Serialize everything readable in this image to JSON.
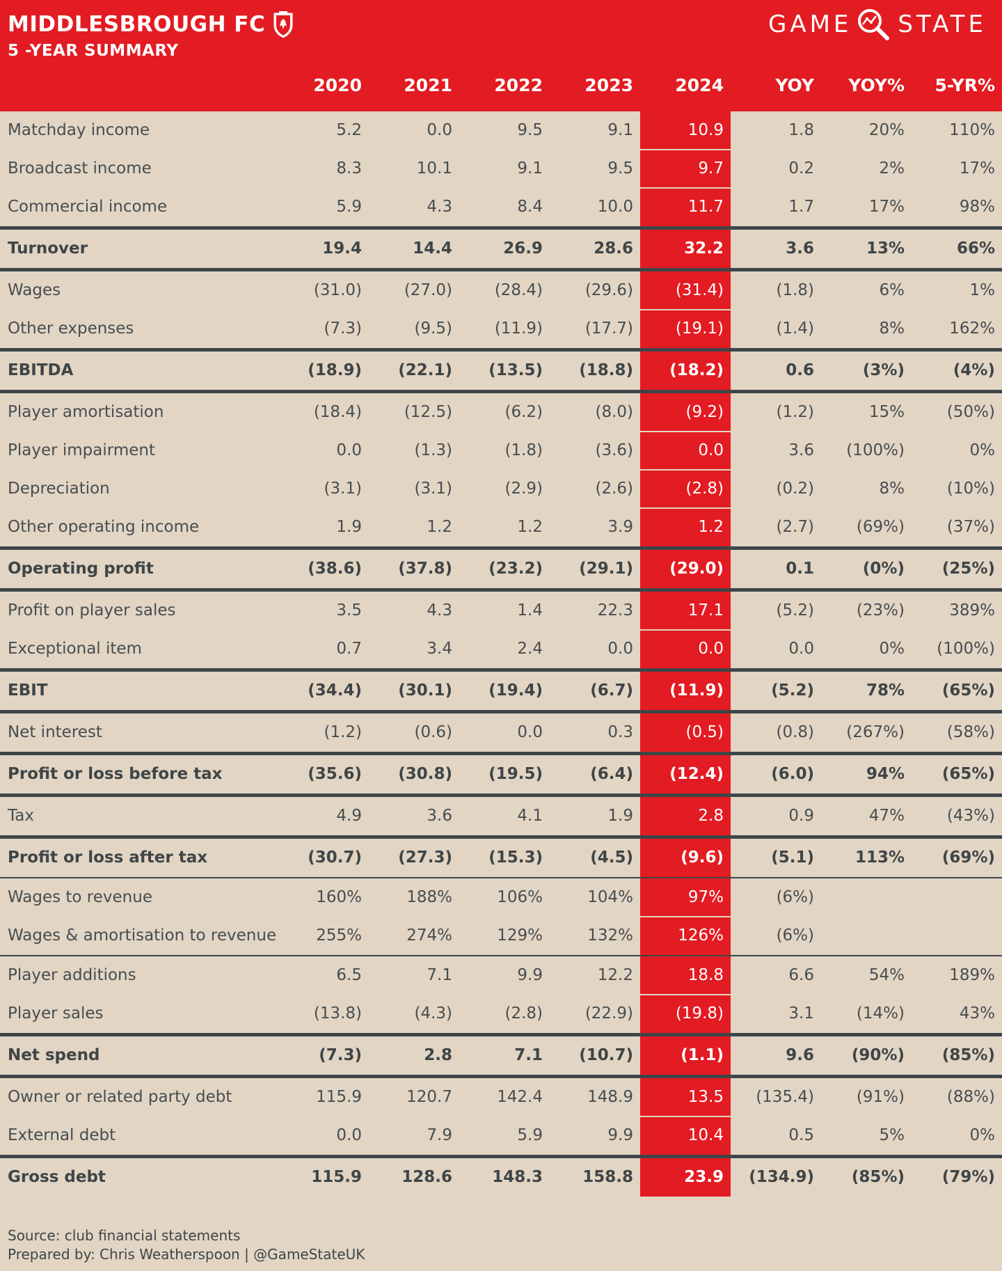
{
  "header": {
    "club": "MIDDLESBROUGH FC",
    "subtitle": "5 -YEAR SUMMARY",
    "brand_left": "GAME",
    "brand_right": "STATE",
    "icons": {
      "crest": "club-crest-icon",
      "brand": "magnifier-icon"
    },
    "colors": {
      "header_bg": "#e31b22",
      "body_bg": "#e2d5c4",
      "highlight": "#e31b22",
      "rule": "#3f4547"
    }
  },
  "columns": [
    "2020",
    "2021",
    "2022",
    "2023",
    "2024",
    "YOY",
    "YOY%",
    "5-YR%"
  ],
  "rows": [
    {
      "label": "Matchday income",
      "values": [
        "5.2",
        "0.0",
        "9.5",
        "9.1",
        "10.9",
        "1.8",
        "20%",
        "110%"
      ],
      "bold": false
    },
    {
      "label": "Broadcast income",
      "values": [
        "8.3",
        "10.1",
        "9.1",
        "9.5",
        "9.7",
        "0.2",
        "2%",
        "17%"
      ],
      "bold": false
    },
    {
      "label": "Commercial income",
      "values": [
        "5.9",
        "4.3",
        "8.4",
        "10.0",
        "11.7",
        "1.7",
        "17%",
        "98%"
      ],
      "bold": false
    },
    {
      "label": "Turnover",
      "values": [
        "19.4",
        "14.4",
        "26.9",
        "28.6",
        "32.2",
        "3.6",
        "13%",
        "66%"
      ],
      "bold": true
    },
    {
      "label": "Wages",
      "values": [
        "(31.0)",
        "(27.0)",
        "(28.4)",
        "(29.6)",
        "(31.4)",
        "(1.8)",
        "6%",
        "1%"
      ],
      "bold": false
    },
    {
      "label": "Other expenses",
      "values": [
        "(7.3)",
        "(9.5)",
        "(11.9)",
        "(17.7)",
        "(19.1)",
        "(1.4)",
        "8%",
        "162%"
      ],
      "bold": false
    },
    {
      "label": "EBITDA",
      "values": [
        "(18.9)",
        "(22.1)",
        "(13.5)",
        "(18.8)",
        "(18.2)",
        "0.6",
        "(3%)",
        "(4%)"
      ],
      "bold": true
    },
    {
      "label": "Player amortisation",
      "values": [
        "(18.4)",
        "(12.5)",
        "(6.2)",
        "(8.0)",
        "(9.2)",
        "(1.2)",
        "15%",
        "(50%)"
      ],
      "bold": false
    },
    {
      "label": "Player impairment",
      "values": [
        "0.0",
        "(1.3)",
        "(1.8)",
        "(3.6)",
        "0.0",
        "3.6",
        "(100%)",
        "0%"
      ],
      "bold": false
    },
    {
      "label": "Depreciation",
      "values": [
        "(3.1)",
        "(3.1)",
        "(2.9)",
        "(2.6)",
        "(2.8)",
        "(0.2)",
        "8%",
        "(10%)"
      ],
      "bold": false
    },
    {
      "label": "Other operating income",
      "values": [
        "1.9",
        "1.2",
        "1.2",
        "3.9",
        "1.2",
        "(2.7)",
        "(69%)",
        "(37%)"
      ],
      "bold": false
    },
    {
      "label": "Operating profit",
      "values": [
        "(38.6)",
        "(37.8)",
        "(23.2)",
        "(29.1)",
        "(29.0)",
        "0.1",
        "(0%)",
        "(25%)"
      ],
      "bold": true
    },
    {
      "label": "Profit on player sales",
      "values": [
        "3.5",
        "4.3",
        "1.4",
        "22.3",
        "17.1",
        "(5.2)",
        "(23%)",
        "389%"
      ],
      "bold": false
    },
    {
      "label": "Exceptional item",
      "values": [
        "0.7",
        "3.4",
        "2.4",
        "0.0",
        "0.0",
        "0.0",
        "0%",
        "(100%)"
      ],
      "bold": false
    },
    {
      "label": "EBIT",
      "values": [
        "(34.4)",
        "(30.1)",
        "(19.4)",
        "(6.7)",
        "(11.9)",
        "(5.2)",
        "78%",
        "(65%)"
      ],
      "bold": true
    },
    {
      "label": "Net interest",
      "values": [
        "(1.2)",
        "(0.6)",
        "0.0",
        "0.3",
        "(0.5)",
        "(0.8)",
        "(267%)",
        "(58%)"
      ],
      "bold": false
    },
    {
      "label": "Profit or loss before tax",
      "values": [
        "(35.6)",
        "(30.8)",
        "(19.5)",
        "(6.4)",
        "(12.4)",
        "(6.0)",
        "94%",
        "(65%)"
      ],
      "bold": true
    },
    {
      "label": "Tax",
      "values": [
        "4.9",
        "3.6",
        "4.1",
        "1.9",
        "2.8",
        "0.9",
        "47%",
        "(43%)"
      ],
      "bold": false
    },
    {
      "label": "Profit or loss after tax",
      "values": [
        "(30.7)",
        "(27.3)",
        "(15.3)",
        "(4.5)",
        "(9.6)",
        "(5.1)",
        "113%",
        "(69%)"
      ],
      "bold": true
    },
    {
      "label": "Wages to revenue",
      "values": [
        "160%",
        "188%",
        "106%",
        "104%",
        "97%",
        "(6%)",
        "",
        ""
      ],
      "bold": false
    },
    {
      "label": "Wages & amortisation to revenue",
      "values": [
        "255%",
        "274%",
        "129%",
        "132%",
        "126%",
        "(6%)",
        "",
        ""
      ],
      "bold": false
    },
    {
      "label": "Player additions",
      "values": [
        "6.5",
        "7.1",
        "9.9",
        "12.2",
        "18.8",
        "6.6",
        "54%",
        "189%"
      ],
      "bold": false
    },
    {
      "label": "Player sales",
      "values": [
        "(13.8)",
        "(4.3)",
        "(2.8)",
        "(22.9)",
        "(19.8)",
        "3.1",
        "(14%)",
        "43%"
      ],
      "bold": false
    },
    {
      "label": "Net spend",
      "values": [
        "(7.3)",
        "2.8",
        "7.1",
        "(10.7)",
        "(1.1)",
        "9.6",
        "(90%)",
        "(85%)"
      ],
      "bold": true
    },
    {
      "label": "Owner or related party debt",
      "values": [
        "115.9",
        "120.7",
        "142.4",
        "148.9",
        "13.5",
        "(135.4)",
        "(91%)",
        "(88%)"
      ],
      "bold": false
    },
    {
      "label": "External debt",
      "values": [
        "0.0",
        "7.9",
        "5.9",
        "9.9",
        "10.4",
        "0.5",
        "5%",
        "0%"
      ],
      "bold": false
    },
    {
      "label": "Gross debt",
      "values": [
        "115.9",
        "128.6",
        "148.3",
        "158.8",
        "23.9",
        "(134.9)",
        "(85%)",
        "(79%)"
      ],
      "bold": true
    }
  ],
  "footer": {
    "source": "Source: club financial statements",
    "prepared": "Prepared by: Chris Weatherspoon | @GameStateUK"
  }
}
